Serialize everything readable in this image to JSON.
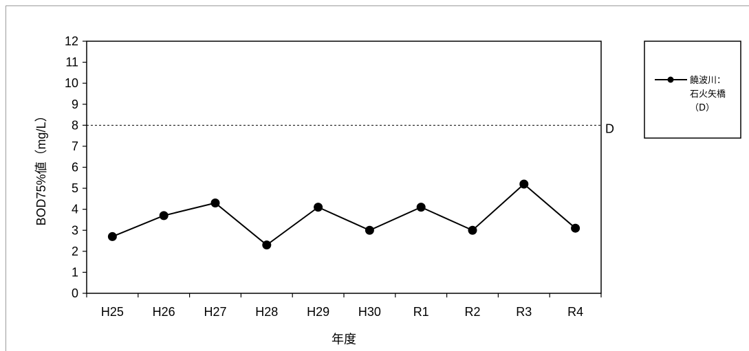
{
  "chart_data": {
    "type": "line",
    "ylabel": "BOD75%値（mg/L）",
    "xlabel": "年度",
    "categories": [
      "H25",
      "H26",
      "H27",
      "H28",
      "H29",
      "H30",
      "R1",
      "R2",
      "R3",
      "R4"
    ],
    "series": [
      {
        "name": "饒波川：石火矢橋（D）",
        "values": [
          2.7,
          3.7,
          4.3,
          2.3,
          4.1,
          3.0,
          4.1,
          3.0,
          5.2,
          3.1
        ],
        "color": "#000000"
      }
    ],
    "ylim": [
      0,
      12
    ],
    "yticks": [
      0,
      1,
      2,
      3,
      4,
      5,
      6,
      7,
      8,
      9,
      10,
      11,
      12
    ],
    "reference_line": {
      "value": 8,
      "label": "D",
      "style": "dashed"
    },
    "grid": false,
    "legend": {
      "position": "right",
      "lines": [
        "饒波川：",
        "石火矢橋",
        "（D）"
      ]
    }
  }
}
